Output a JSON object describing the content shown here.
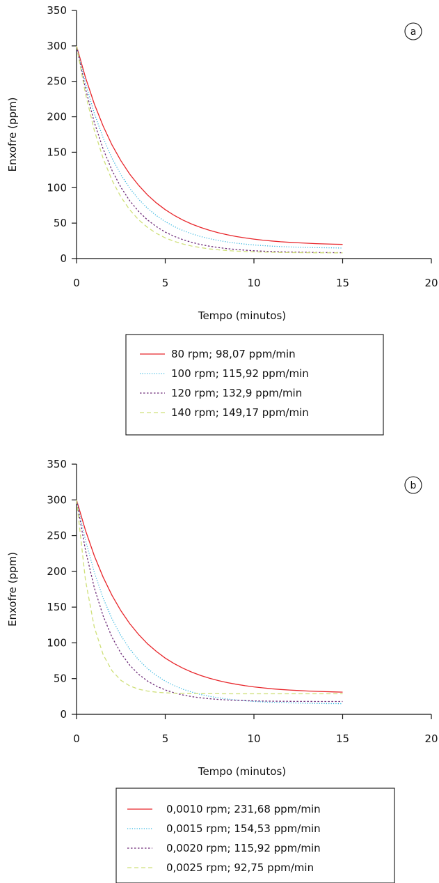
{
  "panels": [
    {
      "badge": "a"
    },
    {
      "badge": "b"
    }
  ],
  "chart_data": [
    {
      "type": "line",
      "panel": "a",
      "xlabel": "Tempo (minutos)",
      "ylabel": "Enxofre (ppm)",
      "xlim": [
        0,
        20
      ],
      "ylim": [
        0,
        350
      ],
      "xticks": [
        "0",
        "5",
        "10",
        "15",
        "20"
      ],
      "yticks": [
        "0",
        "50",
        "100",
        "150",
        "200",
        "250",
        "300",
        "350"
      ],
      "grid": false,
      "legend_position": "below",
      "x": [
        0,
        0.5,
        1,
        1.5,
        2,
        2.5,
        3,
        3.5,
        4,
        4.5,
        5,
        5.5,
        6,
        6.5,
        7,
        7.5,
        8,
        8.5,
        9,
        9.5,
        10,
        10.5,
        11,
        11.5,
        12,
        12.5,
        13,
        13.5,
        14,
        14.5,
        15
      ],
      "series": [
        {
          "name": "80 rpm; 98,07 ppm/min",
          "color": "#e8262b",
          "dash": "solid",
          "values": [
            300,
            255.7,
            218.3,
            186.8,
            160.3,
            137.9,
            119.1,
            103.2,
            89.8,
            78.5,
            69.0,
            61.0,
            54.3,
            48.6,
            43.8,
            39.8,
            36.4,
            33.5,
            31.1,
            29.1,
            27.4,
            26.0,
            24.8,
            23.7,
            22.9,
            22.2,
            21.6,
            21.0,
            20.6,
            20.3,
            20.0
          ]
        },
        {
          "name": "100 rpm; 115,92 ppm/min",
          "color": "#35b6e0",
          "dash": "dotted",
          "values": [
            300,
            247.7,
            205.0,
            170.1,
            141.6,
            118.3,
            99.2,
            83.7,
            71.0,
            60.6,
            52.1,
            45.2,
            39.5,
            34.9,
            31.1,
            28.0,
            25.5,
            23.4,
            21.7,
            20.4,
            19.2,
            18.3,
            17.5,
            16.9,
            16.4,
            16.0,
            15.7,
            15.4,
            15.2,
            15.0,
            14.8
          ]
        },
        {
          "name": "120 rpm; 132,9 ppm/min",
          "color": "#6d2a78",
          "dash": "dashed-short",
          "values": [
            300,
            240.0,
            192.3,
            154.5,
            124.4,
            100.5,
            81.5,
            66.5,
            54.5,
            45.0,
            37.4,
            31.4,
            26.6,
            22.8,
            19.8,
            17.4,
            15.5,
            14.0,
            12.8,
            11.8,
            11.0,
            10.4,
            9.9,
            9.5,
            9.2,
            9.0,
            8.8,
            8.6,
            8.5,
            8.4,
            8.3
          ]
        },
        {
          "name": "140 rpm; 149,17 ppm/min",
          "color": "#cfe07a",
          "dash": "dashed-long",
          "values": [
            300,
            232.8,
            181.0,
            141.2,
            110.5,
            86.9,
            68.7,
            54.7,
            43.9,
            35.6,
            29.2,
            24.3,
            20.5,
            17.6,
            15.4,
            13.6,
            12.3,
            11.3,
            10.5,
            9.9,
            9.4,
            9.1,
            8.8,
            8.6,
            8.5,
            8.4,
            8.3,
            8.2,
            8.2,
            8.1,
            8.1
          ]
        }
      ]
    },
    {
      "type": "line",
      "panel": "b",
      "xlabel": "Tempo (minutos)",
      "ylabel": "Enxofre (ppm)",
      "xlim": [
        0,
        20
      ],
      "ylim": [
        0,
        350
      ],
      "xticks": [
        "0",
        "5",
        "10",
        "15",
        "20"
      ],
      "yticks": [
        "0",
        "50",
        "100",
        "150",
        "200",
        "250",
        "300",
        "350"
      ],
      "grid": false,
      "legend_position": "below",
      "x": [
        0,
        0.5,
        1,
        1.5,
        2,
        2.5,
        3,
        3.5,
        4,
        4.5,
        5,
        5.5,
        6,
        6.5,
        7,
        7.5,
        8,
        8.5,
        9,
        9.5,
        10,
        10.5,
        11,
        11.5,
        12,
        12.5,
        13,
        13.5,
        14,
        14.5,
        15
      ],
      "series": [
        {
          "name": "0,0010 rpm; 231,68 ppm/min",
          "color": "#e8262b",
          "dash": "solid",
          "values": [
            300,
            257.6,
            221.9,
            191.8,
            166.4,
            144.9,
            126.8,
            111.6,
            98.7,
            87.9,
            78.7,
            71.0,
            64.5,
            59.0,
            54.4,
            50.5,
            47.2,
            44.4,
            42.1,
            40.1,
            38.4,
            37.0,
            35.8,
            34.8,
            34.0,
            33.3,
            32.7,
            32.2,
            31.8,
            31.4,
            31.1
          ]
        },
        {
          "name": "0,0015 rpm; 154,53 ppm/min",
          "color": "#35b6e0",
          "dash": "dotted",
          "values": [
            300,
            243.9,
            198.8,
            162.6,
            133.5,
            110.1,
            91.3,
            76.2,
            64.1,
            54.3,
            46.5,
            40.2,
            35.1,
            31.1,
            27.8,
            25.2,
            23.1,
            21.4,
            20.1,
            19.0,
            18.1,
            17.4,
            16.9,
            16.4,
            16.1,
            15.8,
            15.5,
            15.3,
            15.2,
            15.1,
            15.0
          ]
        },
        {
          "name": "0,0020 rpm; 115,92 ppm/min",
          "color": "#6d2a78",
          "dash": "dashed-short",
          "values": [
            300,
            229.9,
            177.2,
            137.6,
            107.9,
            85.5,
            68.7,
            56.1,
            46.6,
            39.5,
            34.1,
            30.1,
            27.1,
            24.8,
            23.1,
            21.8,
            20.9,
            20.1,
            19.6,
            19.2,
            18.8,
            18.6,
            18.4,
            18.3,
            18.2,
            18.1,
            18.1,
            18.0,
            18.0,
            18.0,
            18.0
          ]
        },
        {
          "name": "0,0025 rpm; 92,75 ppm/min",
          "color": "#cfe07a",
          "dash": "dashed-long",
          "values": [
            300,
            187.9,
            122.1,
            83.5,
            60.9,
            47.6,
            39.8,
            35.2,
            32.6,
            31.0,
            30.1,
            29.6,
            29.3,
            29.1,
            29.0,
            28.9,
            28.9,
            28.8,
            28.8,
            28.8,
            28.8,
            28.8,
            28.8,
            28.8,
            28.8,
            28.8,
            28.8,
            28.8,
            28.8,
            28.8,
            28.8
          ]
        }
      ]
    }
  ]
}
